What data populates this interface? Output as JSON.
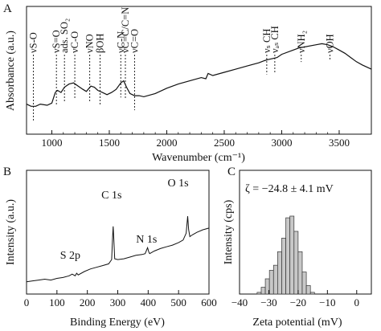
{
  "chart_data": [
    {
      "panel": "A",
      "type": "line",
      "xlabel": "Wavenumber (cm⁻¹)",
      "ylabel": "Absorbance (a.u.)",
      "xlim": [
        780,
        3780
      ],
      "xticks": [
        1000,
        1500,
        2000,
        2500,
        3000,
        3500
      ],
      "x": [
        780,
        820,
        860,
        900,
        960,
        1000,
        1030,
        1050,
        1080,
        1110,
        1150,
        1190,
        1230,
        1270,
        1300,
        1340,
        1370,
        1400,
        1440,
        1480,
        1520,
        1560,
        1600,
        1625,
        1650,
        1680,
        1720,
        1760,
        1800,
        1900,
        2000,
        2100,
        2200,
        2300,
        2340,
        2360,
        2400,
        2500,
        2600,
        2700,
        2800,
        2850,
        2880,
        2920,
        2960,
        3000,
        3100,
        3150,
        3200,
        3300,
        3350,
        3400,
        3450,
        3500,
        3550,
        3600,
        3650,
        3700,
        3780
      ],
      "y": [
        0.23,
        0.21,
        0.21,
        0.23,
        0.22,
        0.24,
        0.34,
        0.36,
        0.34,
        0.39,
        0.42,
        0.43,
        0.4,
        0.37,
        0.35,
        0.4,
        0.39,
        0.36,
        0.34,
        0.32,
        0.34,
        0.37,
        0.43,
        0.45,
        0.39,
        0.33,
        0.31,
        0.31,
        0.3,
        0.33,
        0.38,
        0.42,
        0.45,
        0.48,
        0.47,
        0.52,
        0.5,
        0.53,
        0.56,
        0.59,
        0.62,
        0.64,
        0.65,
        0.66,
        0.67,
        0.7,
        0.74,
        0.76,
        0.77,
        0.79,
        0.8,
        0.79,
        0.77,
        0.74,
        0.71,
        0.67,
        0.63,
        0.6,
        0.56
      ],
      "annotations": [
        {
          "label": "νS-O",
          "x": 840
        },
        {
          "label": "νS=O",
          "x": 1040
        },
        {
          "label": "ads. SO₂",
          "x": 1110
        },
        {
          "label": "νC-O",
          "x": 1200
        },
        {
          "label": "νNO",
          "x": 1330
        },
        {
          "label": "βOH",
          "x": 1420
        },
        {
          "label": "νC-N",
          "x": 1600
        },
        {
          "label": "νC=C/C=N",
          "x": 1640
        },
        {
          "label": "νC=O",
          "x": 1720
        },
        {
          "label": "νₛ CH",
          "x": 2870
        },
        {
          "label": "νₐₛ CH",
          "x": 2940
        },
        {
          "label": "νNH₂",
          "x": 3170
        },
        {
          "label": "νOH",
          "x": 3420
        }
      ]
    },
    {
      "panel": "B",
      "type": "line",
      "xlabel": "Binding Energy (eV)",
      "ylabel": "Intensity (a.u.)",
      "xlim": [
        0,
        600
      ],
      "xticks": [
        0,
        100,
        200,
        300,
        400,
        500,
        600
      ],
      "x": [
        0,
        20,
        40,
        60,
        80,
        100,
        120,
        140,
        150,
        160,
        165,
        170,
        190,
        210,
        230,
        250,
        270,
        280,
        283,
        285,
        287,
        290,
        300,
        320,
        340,
        360,
        380,
        390,
        398,
        402,
        405,
        420,
        440,
        460,
        480,
        500,
        515,
        525,
        530,
        533,
        537,
        545,
        560,
        580,
        600
      ],
      "y": [
        0.05,
        0.06,
        0.07,
        0.08,
        0.07,
        0.09,
        0.1,
        0.12,
        0.14,
        0.12,
        0.15,
        0.13,
        0.17,
        0.2,
        0.22,
        0.24,
        0.26,
        0.31,
        0.58,
        0.7,
        0.55,
        0.32,
        0.31,
        0.32,
        0.34,
        0.36,
        0.37,
        0.38,
        0.45,
        0.4,
        0.38,
        0.41,
        0.44,
        0.46,
        0.48,
        0.51,
        0.54,
        0.62,
        0.82,
        0.66,
        0.58,
        0.6,
        0.63,
        0.66,
        0.68
      ],
      "peak_labels": [
        {
          "label": "S 2p",
          "x": 165
        },
        {
          "label": "C 1s",
          "x": 285
        },
        {
          "label": "N 1s",
          "x": 400
        },
        {
          "label": "O 1s",
          "x": 530
        }
      ]
    },
    {
      "panel": "C",
      "type": "bar",
      "xlabel": "Zeta potential (mV)",
      "ylabel": "Intensity (cps)",
      "xlim": [
        -40,
        5
      ],
      "xticks": [
        -40,
        -30,
        -20,
        -10,
        0
      ],
      "annotation": "ζ = −24.8 ± 4.1 mV",
      "bin_width": 1.4,
      "bins": [
        -34.0,
        -32.6,
        -31.2,
        -29.8,
        -28.4,
        -27.0,
        -25.6,
        -24.2,
        -22.8,
        -21.4,
        -20.0,
        -18.6,
        -17.2,
        -15.8
      ],
      "values": [
        1,
        4,
        9,
        14,
        17,
        25,
        33,
        45,
        46,
        37,
        25,
        13,
        5,
        1
      ],
      "ylim": [
        0,
        55
      ]
    }
  ]
}
